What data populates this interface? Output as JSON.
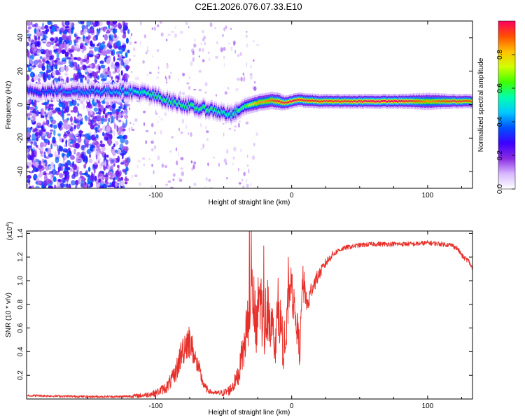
{
  "figure_title": "C2E1.2026.076.07.33.E10",
  "chart_data": [
    {
      "type": "heatmap",
      "title": "C2E1.2026.076.07.33.E10",
      "xlabel": "Height of straight line (km)",
      "ylabel": "Frequency (Hz)",
      "xlim": [
        -195,
        133
      ],
      "ylim": [
        -50,
        50
      ],
      "xticks": [
        -100,
        0,
        100
      ],
      "yticks": [
        -40,
        -20,
        0,
        20,
        40
      ],
      "colorbar": {
        "label": "Normalized spectral amplitude",
        "range": [
          0,
          1
        ],
        "ticks": [
          0.0,
          0.2,
          0.4,
          0.6,
          0.8
        ],
        "colors": [
          "#ffffff",
          "#d8b8ff",
          "#8a2be2",
          "#3c00ff",
          "#0050ff",
          "#00c8ff",
          "#00ffb0",
          "#40ff00",
          "#d0ff00",
          "#ffc000",
          "#ff5000",
          "#ff0060"
        ]
      },
      "ridge": {
        "x": [
          -195,
          -170,
          -130,
          -120,
          -110,
          -100,
          -90,
          -80,
          -70,
          -60,
          -50,
          -45,
          -40,
          -35,
          -30,
          -25,
          -20,
          -15,
          -10,
          -5,
          0,
          5,
          10,
          20,
          40,
          60,
          80,
          100,
          120,
          133
        ],
        "y": [
          8,
          8,
          8,
          8,
          7,
          5,
          2,
          0,
          -2,
          -3,
          -5,
          -6,
          -4,
          -1,
          0,
          1,
          2,
          2.5,
          2,
          1,
          2,
          3,
          2.5,
          2,
          2,
          2,
          2,
          2,
          2,
          2
        ],
        "amplitude": [
          0.35,
          0.4,
          0.45,
          0.5,
          0.55,
          0.6,
          0.6,
          0.6,
          0.6,
          0.6,
          0.55,
          0.55,
          0.6,
          0.6,
          0.75,
          0.85,
          0.85,
          0.9,
          0.95,
          0.95,
          1.0,
          0.95,
          0.95,
          0.95,
          0.95,
          1.0,
          1.0,
          0.85,
          0.95,
          0.9
        ],
        "width_hz": [
          3,
          3,
          3,
          3,
          3,
          3,
          3,
          3,
          3,
          3,
          3,
          3,
          3,
          3,
          3,
          3,
          3,
          3,
          3,
          2.5,
          2.5,
          2.5,
          2.5,
          2.5,
          2.5,
          2.5,
          2.5,
          3,
          2.5,
          2.5
        ]
      },
      "noise_region": {
        "x_start": -195,
        "x_end": -120,
        "level": 0.4
      }
    },
    {
      "type": "line",
      "xlabel": "Height of straight line (km)",
      "ylabel": "SNR (10 * v/v)",
      "multiplier_label": "(x10",
      "multiplier_exp": "4",
      "multiplier_close": ")",
      "xlim": [
        -195,
        133
      ],
      "ylim": [
        0,
        1.42
      ],
      "xticks": [
        -100,
        0,
        100
      ],
      "yticks": [
        0.2,
        0.4,
        0.6,
        0.8,
        1.0,
        1.2,
        1.4
      ],
      "color": "#e8302a",
      "series": [
        {
          "name": "SNR",
          "x": [
            -195,
            -150,
            -125,
            -110,
            -100,
            -92,
            -86,
            -82,
            -79,
            -76,
            -73,
            -70,
            -67,
            -64,
            -60,
            -56,
            -50,
            -45,
            -40,
            -36,
            -33,
            -30,
            -28,
            -26,
            -24,
            -22,
            -20,
            -18,
            -16,
            -14,
            -12,
            -10,
            -8,
            -6,
            -4,
            -2,
            0,
            2,
            4,
            6,
            8,
            10,
            12,
            15,
            20,
            25,
            30,
            35,
            40,
            50,
            60,
            70,
            80,
            90,
            100,
            110,
            118,
            122,
            126,
            130,
            133
          ],
          "y": [
            0.03,
            0.02,
            0.02,
            0.03,
            0.05,
            0.1,
            0.2,
            0.35,
            0.45,
            0.5,
            0.42,
            0.3,
            0.2,
            0.1,
            0.06,
            0.05,
            0.05,
            0.08,
            0.18,
            0.35,
            0.6,
            0.9,
            0.8,
            0.5,
            0.9,
            0.75,
            0.6,
            0.8,
            0.7,
            0.55,
            0.5,
            0.75,
            0.65,
            0.4,
            0.5,
            0.95,
            0.9,
            0.75,
            0.6,
            0.4,
            1.0,
            0.85,
            0.8,
            0.95,
            1.05,
            1.15,
            1.22,
            1.26,
            1.28,
            1.3,
            1.31,
            1.31,
            1.31,
            1.31,
            1.32,
            1.31,
            1.3,
            1.27,
            1.2,
            1.17,
            1.1
          ],
          "noise": [
            0.01,
            0.01,
            0.01,
            0.02,
            0.03,
            0.05,
            0.08,
            0.12,
            0.15,
            0.15,
            0.12,
            0.1,
            0.07,
            0.04,
            0.02,
            0.02,
            0.03,
            0.05,
            0.08,
            0.15,
            0.25,
            0.3,
            0.3,
            0.3,
            0.3,
            0.3,
            0.3,
            0.3,
            0.25,
            0.25,
            0.2,
            0.25,
            0.2,
            0.2,
            0.2,
            0.2,
            0.18,
            0.15,
            0.15,
            0.15,
            0.15,
            0.12,
            0.1,
            0.08,
            0.05,
            0.04,
            0.03,
            0.02,
            0.02,
            0.02,
            0.02,
            0.02,
            0.02,
            0.02,
            0.02,
            0.02,
            0.02,
            0.02,
            0.02,
            0.02,
            0.02
          ]
        }
      ]
    }
  ]
}
